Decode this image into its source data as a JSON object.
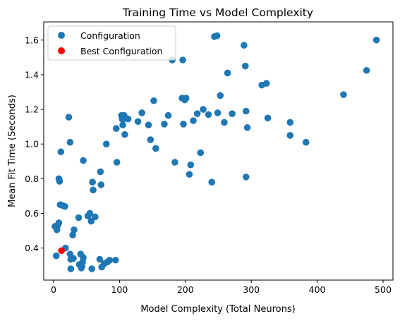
{
  "chart_data": {
    "type": "scatter",
    "title": "Training Time vs Model Complexity",
    "xlabel": "Model Complexity (Total Neurons)",
    "ylabel": "Mean Fit Time (Seconds)",
    "xlim": [
      -15,
      515
    ],
    "ylim": [
      0.215,
      1.705
    ],
    "xticks": [
      0,
      100,
      200,
      300,
      400,
      500
    ],
    "yticks": [
      0.4,
      0.6,
      0.8,
      1.0,
      1.2,
      1.4,
      1.6
    ],
    "grid": false,
    "legend": "upper-left",
    "series": [
      {
        "name": "Configuration",
        "color": "#1f77b4",
        "points": [
          [
            2,
            0.525
          ],
          [
            4,
            0.355
          ],
          [
            5,
            0.505
          ],
          [
            6,
            0.53
          ],
          [
            8,
            0.545
          ],
          [
            8,
            0.8
          ],
          [
            9,
            0.785
          ],
          [
            10,
            0.65
          ],
          [
            11,
            0.955
          ],
          [
            14,
            0.645
          ],
          [
            17,
            0.64
          ],
          [
            18,
            0.4
          ],
          [
            23,
            1.155
          ],
          [
            25,
            1.01
          ],
          [
            25,
            0.365
          ],
          [
            26,
            0.335
          ],
          [
            26,
            0.28
          ],
          [
            29,
            0.475
          ],
          [
            30,
            0.34
          ],
          [
            31,
            0.505
          ],
          [
            38,
            0.575
          ],
          [
            39,
            0.305
          ],
          [
            41,
            0.365
          ],
          [
            42,
            0.285
          ],
          [
            43,
            0.295
          ],
          [
            44,
            0.32
          ],
          [
            45,
            0.905
          ],
          [
            45,
            0.345
          ],
          [
            52,
            0.585
          ],
          [
            55,
            0.6
          ],
          [
            57,
            0.555
          ],
          [
            58,
            0.28
          ],
          [
            59,
            0.78
          ],
          [
            60,
            0.735
          ],
          [
            63,
            0.58
          ],
          [
            70,
            0.335
          ],
          [
            71,
            0.84
          ],
          [
            72,
            0.765
          ],
          [
            73,
            0.29
          ],
          [
            77,
            0.31
          ],
          [
            80,
            1.0
          ],
          [
            82,
            0.32
          ],
          [
            85,
            0.33
          ],
          [
            94,
            0.33
          ],
          [
            95,
            1.09
          ],
          [
            96,
            0.895
          ],
          [
            103,
            1.165
          ],
          [
            104,
            1.145
          ],
          [
            105,
            1.11
          ],
          [
            106,
            1.145
          ],
          [
            107,
            1.165
          ],
          [
            108,
            1.055
          ],
          [
            113,
            1.145
          ],
          [
            128,
            1.13
          ],
          [
            134,
            1.18
          ],
          [
            144,
            1.11
          ],
          [
            147,
            1.025
          ],
          [
            152,
            1.25
          ],
          [
            155,
            0.975
          ],
          [
            168,
            1.115
          ],
          [
            174,
            1.165
          ],
          [
            180,
            1.485
          ],
          [
            184,
            0.895
          ],
          [
            195,
            1.265
          ],
          [
            196,
            1.485
          ],
          [
            197,
            1.115
          ],
          [
            199,
            1.255
          ],
          [
            201,
            1.265
          ],
          [
            206,
            0.825
          ],
          [
            208,
            0.88
          ],
          [
            212,
            1.135
          ],
          [
            218,
            1.175
          ],
          [
            223,
            0.95
          ],
          [
            227,
            1.2
          ],
          [
            235,
            1.17
          ],
          [
            240,
            0.78
          ],
          [
            244,
            1.62
          ],
          [
            248,
            1.625
          ],
          [
            249,
            1.18
          ],
          [
            253,
            1.28
          ],
          [
            259,
            1.125
          ],
          [
            264,
            1.41
          ],
          [
            271,
            1.175
          ],
          [
            289,
            1.57
          ],
          [
            291,
            1.45
          ],
          [
            292,
            1.19
          ],
          [
            292,
            0.81
          ],
          [
            294,
            1.095
          ],
          [
            316,
            1.34
          ],
          [
            323,
            1.35
          ],
          [
            325,
            1.15
          ],
          [
            359,
            1.125
          ],
          [
            359,
            1.05
          ],
          [
            383,
            1.01
          ],
          [
            440,
            1.285
          ],
          [
            475,
            1.425
          ],
          [
            490,
            1.6
          ]
        ]
      },
      {
        "name": "Best Configuration",
        "color": "#ff0000",
        "points": [
          [
            12,
            0.385
          ]
        ]
      }
    ]
  }
}
